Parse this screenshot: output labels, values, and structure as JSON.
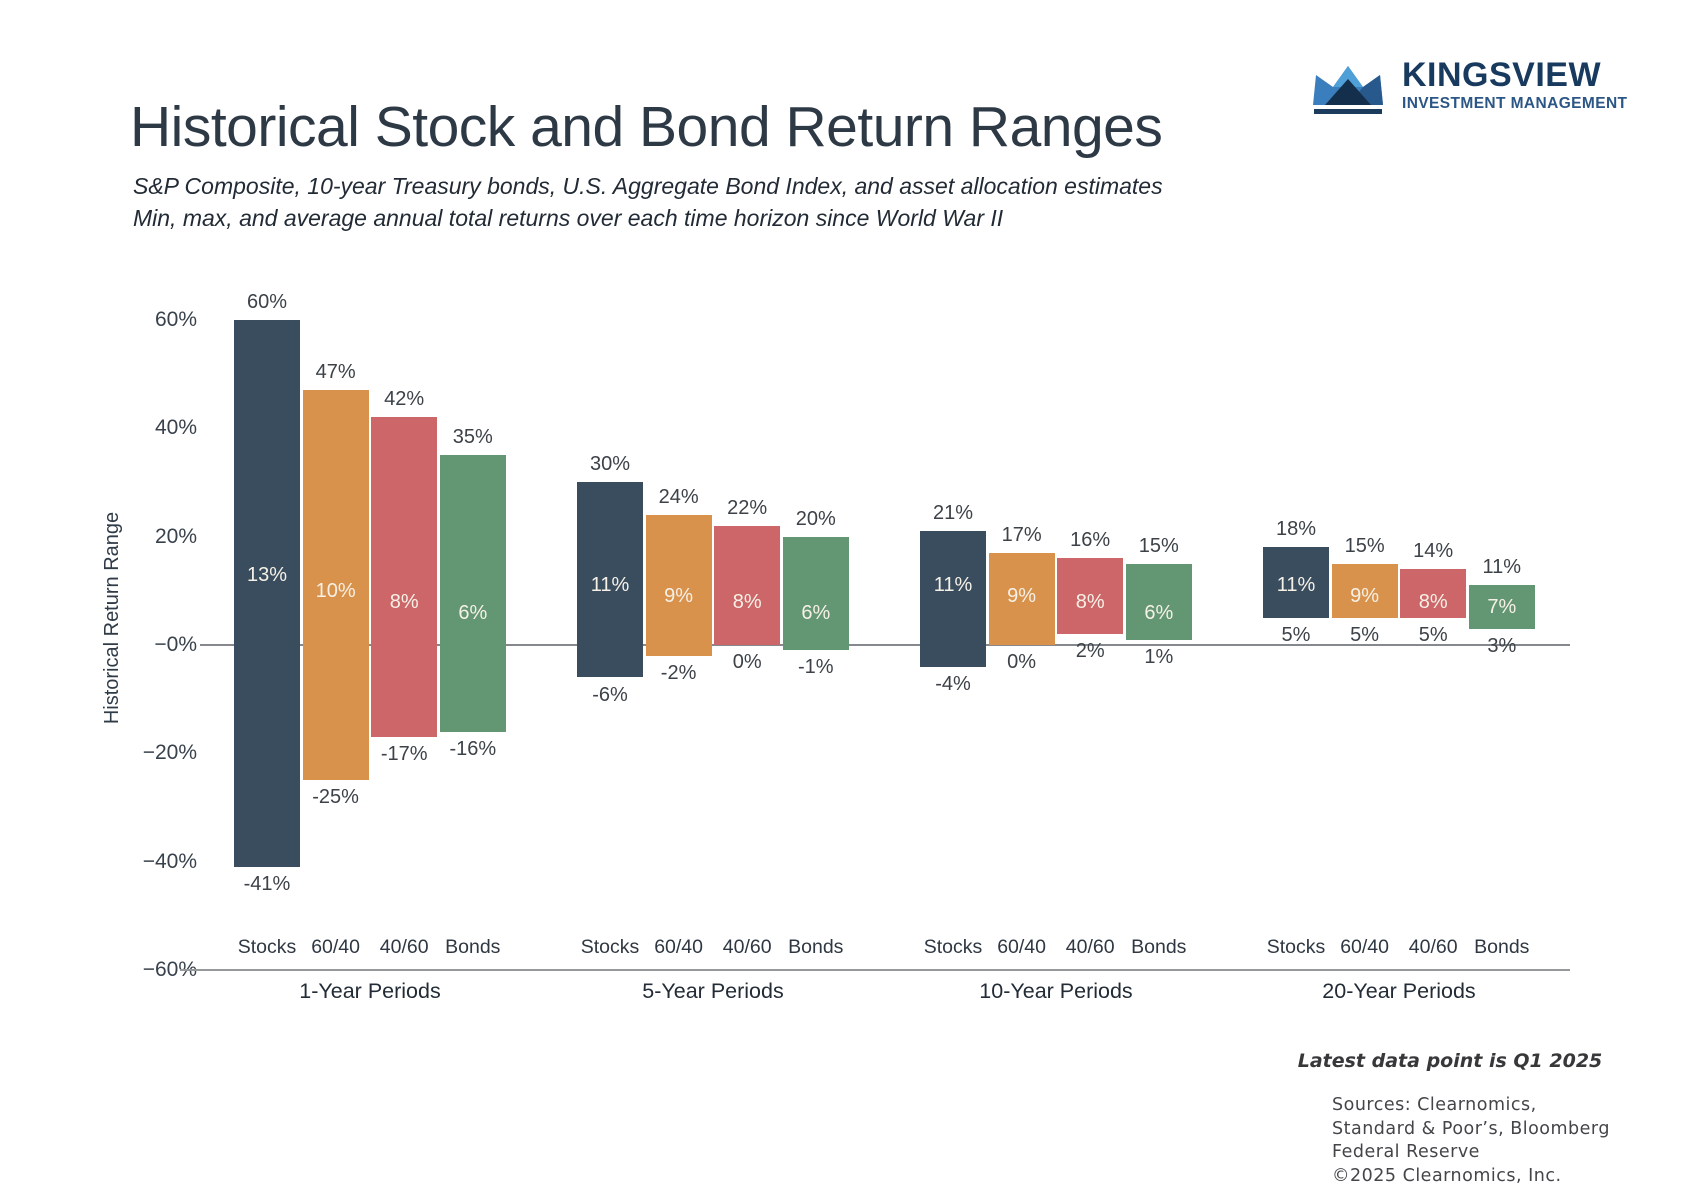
{
  "header": {
    "title": "Historical Stock and Bond Return Ranges",
    "subtitle_line1": "S&P Composite, 10-year Treasury bonds, U.S. Aggregate Bond Index, and asset allocation estimates",
    "subtitle_line2": "Min, max, and average annual total returns over each time horizon since World War II"
  },
  "logo": {
    "name": "KINGSVIEW",
    "tagline": "INVESTMENT MANAGEMENT",
    "colors": {
      "name_navy": "#173a5e",
      "tagline_blue": "#2b5686",
      "crown_mid": "#3b7ebd",
      "crown_light": "#4fa0d9",
      "crown_dark": "#28598c",
      "crown_deep": "#142f4b",
      "base_bar": "#1c3c5e"
    }
  },
  "chart_data": {
    "type": "bar",
    "variant": "floating-range-bars",
    "title": "Historical Stock and Bond Return Ranges",
    "xlabel": "",
    "ylabel": "Historical Return Range",
    "ylim": [
      -60,
      60
    ],
    "grid": false,
    "legend_position": "none",
    "yticks": [
      {
        "value": 60,
        "label": "60%"
      },
      {
        "value": 40,
        "label": "40%"
      },
      {
        "value": 20,
        "label": "20%"
      },
      {
        "value": 0,
        "label": "−0%"
      },
      {
        "value": -20,
        "label": "−20%"
      },
      {
        "value": -40,
        "label": "−40%"
      },
      {
        "value": -60,
        "label": "−60%"
      }
    ],
    "series": [
      {
        "name": "Stocks",
        "color": "#3a4d5f"
      },
      {
        "name": "60/40",
        "color": "#d9924c"
      },
      {
        "name": "40/60",
        "color": "#cc6668"
      },
      {
        "name": "Bonds",
        "color": "#639672"
      }
    ],
    "categories": [
      "1-Year Periods",
      "5-Year Periods",
      "10-Year Periods",
      "20-Year Periods"
    ],
    "groups": [
      {
        "label": "1-Year Periods",
        "bars": [
          {
            "asset": "Stocks",
            "max": 60,
            "avg": 13,
            "min": -41
          },
          {
            "asset": "60/40",
            "max": 47,
            "avg": 10,
            "min": -25
          },
          {
            "asset": "40/60",
            "max": 42,
            "avg": 8,
            "min": -17
          },
          {
            "asset": "Bonds",
            "max": 35,
            "avg": 6,
            "min": -16
          }
        ]
      },
      {
        "label": "5-Year Periods",
        "bars": [
          {
            "asset": "Stocks",
            "max": 30,
            "avg": 11,
            "min": -6
          },
          {
            "asset": "60/40",
            "max": 24,
            "avg": 9,
            "min": -2
          },
          {
            "asset": "40/60",
            "max": 22,
            "avg": 8,
            "min": 0
          },
          {
            "asset": "Bonds",
            "max": 20,
            "avg": 6,
            "min": -1
          }
        ]
      },
      {
        "label": "10-Year Periods",
        "bars": [
          {
            "asset": "Stocks",
            "max": 21,
            "avg": 11,
            "min": -4
          },
          {
            "asset": "60/40",
            "max": 17,
            "avg": 9,
            "min": 0
          },
          {
            "asset": "40/60",
            "max": 16,
            "avg": 8,
            "min": 2
          },
          {
            "asset": "Bonds",
            "max": 15,
            "avg": 6,
            "min": 1
          }
        ]
      },
      {
        "label": "20-Year Periods",
        "bars": [
          {
            "asset": "Stocks",
            "max": 18,
            "avg": 11,
            "min": 5
          },
          {
            "asset": "60/40",
            "max": 15,
            "avg": 9,
            "min": 5
          },
          {
            "asset": "40/60",
            "max": 14,
            "avg": 8,
            "min": 5
          },
          {
            "asset": "Bonds",
            "max": 11,
            "avg": 7,
            "min": 3
          }
        ]
      }
    ]
  },
  "footer": {
    "note": "Latest data point is Q1 2025",
    "sources_lines": [
      "Sources: Clearnomics,",
      "Standard & Poor’s, Bloomberg",
      "Federal Reserve",
      "©2025 Clearnomics, Inc."
    ]
  }
}
